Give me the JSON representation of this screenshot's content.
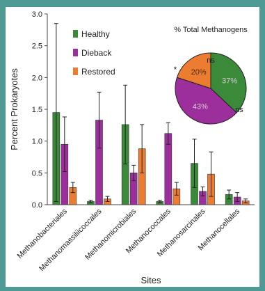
{
  "chart_data": [
    {
      "type": "bar",
      "xlabel": "Sites",
      "ylabel": "Percent Prokaryotes",
      "ylim": [
        0,
        3.0
      ],
      "yticks": [
        "0.0",
        "0.5",
        "1.0",
        "1.5",
        "2.0",
        "2.5",
        "3.0"
      ],
      "grid": false,
      "legend_placement": "top-left",
      "categories": [
        "Methanobacteriales",
        "Methanomassiliicoccales",
        "Methanomicrobiales",
        "Methanococcales",
        "Methanosarcinales",
        "Methanocellales"
      ],
      "series": [
        {
          "name": "Healthy",
          "color": "#3a8a3a",
          "values": [
            1.45,
            0.05,
            1.26,
            0.05,
            0.65,
            0.16
          ],
          "errors": [
            1.4,
            0.02,
            0.62,
            0.02,
            0.38,
            0.07
          ]
        },
        {
          "name": "Dieback",
          "color": "#9c2f9c",
          "values": [
            0.95,
            1.33,
            0.5,
            1.12,
            0.21,
            0.12
          ],
          "errors": [
            0.43,
            0.44,
            0.12,
            0.17,
            0.07,
            0.07
          ]
        },
        {
          "name": "Restored",
          "color": "#ec7c30",
          "values": [
            0.27,
            0.09,
            0.88,
            0.25,
            0.48,
            0.06
          ],
          "errors": [
            0.08,
            0.04,
            0.38,
            0.1,
            0.35,
            0.03
          ]
        }
      ]
    },
    {
      "type": "pie",
      "title": "% Total Methanogens",
      "slices": [
        {
          "label": "37%",
          "value": 37,
          "color": "#3a8a3a"
        },
        {
          "label": "43%",
          "value": 43,
          "color": "#9c2f9c"
        },
        {
          "label": "20%",
          "value": 20,
          "color": "#ec7c30"
        }
      ],
      "annotations": [
        "ns",
        "ns",
        "*"
      ]
    }
  ]
}
